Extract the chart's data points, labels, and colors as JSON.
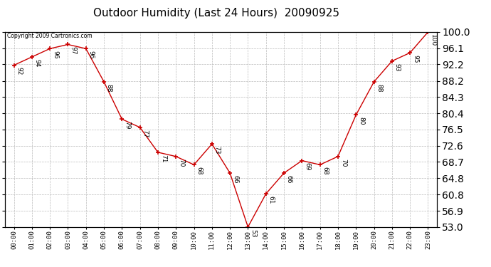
{
  "title": "Outdoor Humidity (Last 24 Hours)  20090925",
  "copyright": "Copyright 2009 Cartronics.com",
  "hours": [
    0,
    1,
    2,
    3,
    4,
    5,
    6,
    7,
    8,
    9,
    10,
    11,
    12,
    13,
    14,
    15,
    16,
    17,
    18,
    19,
    20,
    21,
    22,
    23
  ],
  "values": [
    92,
    94,
    96,
    97,
    96,
    88,
    79,
    77,
    71,
    70,
    68,
    73,
    66,
    53,
    61,
    66,
    69,
    68,
    70,
    80,
    88,
    93,
    95,
    100
  ],
  "line_color": "#cc0000",
  "marker": "+",
  "bg_color": "#ffffff",
  "grid_color": "#bbbbbb",
  "ymin": 53.0,
  "ymax": 100.0,
  "yticks": [
    53.0,
    56.9,
    60.8,
    64.8,
    68.7,
    72.6,
    76.5,
    80.4,
    84.3,
    88.2,
    92.2,
    96.1,
    100.0
  ],
  "title_fontsize": 11,
  "label_fontsize": 6.5,
  "annotation_fontsize": 6.5
}
